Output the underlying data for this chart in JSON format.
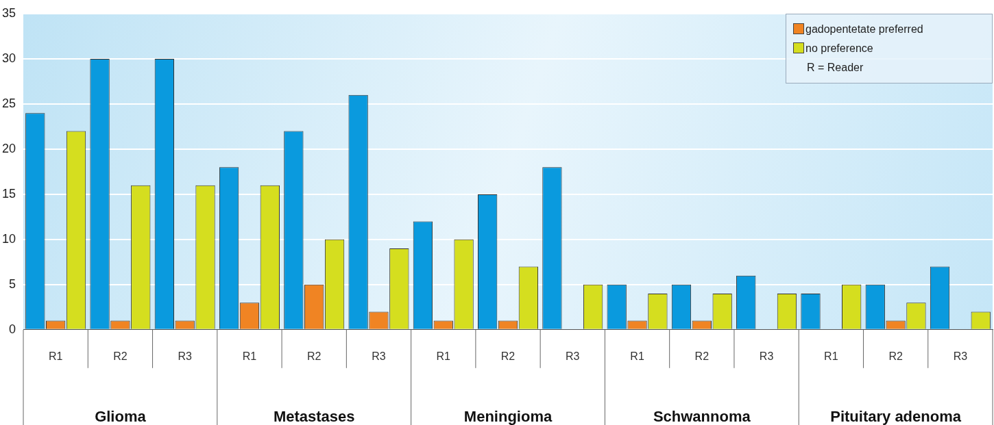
{
  "chart_data": {
    "type": "bar",
    "categories": [
      "R1",
      "R2",
      "R3",
      "R1",
      "R2",
      "R3",
      "R1",
      "R2",
      "R3",
      "R1",
      "R2",
      "R3",
      "R1",
      "R2",
      "R3"
    ],
    "series": [
      {
        "color": "#0a9ade",
        "values": [
          24,
          30,
          30,
          18,
          22,
          26,
          12,
          15,
          18,
          5,
          5,
          6,
          4,
          5,
          7
        ]
      },
      {
        "name": "gadopentetate preferred",
        "color": "#f08423",
        "values": [
          1,
          1,
          1,
          3,
          5,
          2,
          1,
          1,
          0,
          1,
          1,
          0,
          0,
          1,
          0
        ]
      },
      {
        "name": "no preference",
        "color": "#d5de1f",
        "values": [
          22,
          16,
          16,
          16,
          10,
          9,
          10,
          7,
          5,
          4,
          4,
          4,
          5,
          3,
          2
        ]
      }
    ],
    "ylim": [
      0,
      35
    ],
    "yticks": [
      0,
      5,
      10,
      15,
      20,
      25,
      30,
      35
    ],
    "grid": "y",
    "legend": "top right",
    "annotations": [
      "Glioma",
      "Metastases",
      "Meningioma",
      "Schwannoma",
      "Pituitary adenoma",
      "R = Reader"
    ]
  }
}
